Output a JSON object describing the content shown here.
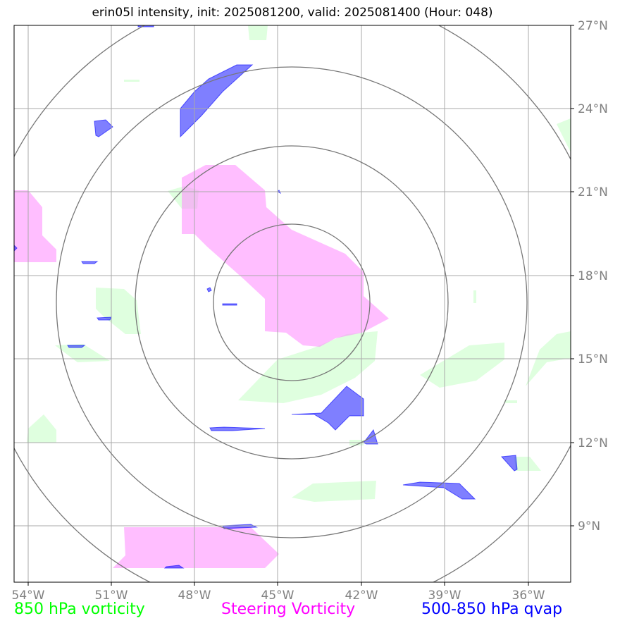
{
  "title": "erin05l intensity, init: 2025081200, valid: 2025081400 (Hour: 048)",
  "lon_labels": [
    "54°W",
    "51°W",
    "48°W",
    "45°W",
    "42°W",
    "39°W",
    "36°W"
  ],
  "lat_labels": [
    "27°N",
    "24°N",
    "21°N",
    "18°N",
    "15°N",
    "12°N",
    "9°N"
  ],
  "legend": {
    "vort850": "850 hPa vorticity",
    "steering": "Steering Vorticity",
    "qvap": "500-850 hPa qvap"
  },
  "colors": {
    "vort850": "#00ff00",
    "steering": "#ff00ff",
    "qvap": "#0000ff",
    "grid": "#aaaaaa",
    "rings": "#777777",
    "tick_labels": "#808080"
  },
  "storm_center": {
    "lon": -44.6,
    "lat": 17.1
  }
}
